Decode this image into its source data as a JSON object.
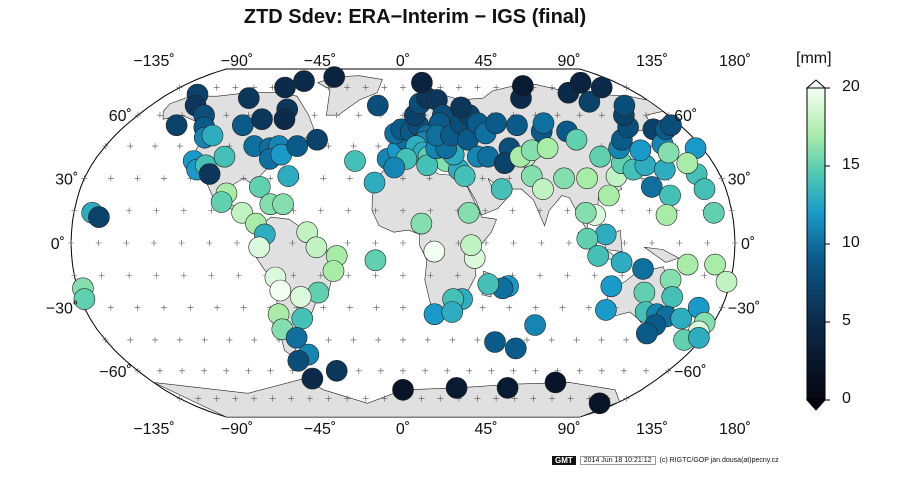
{
  "title": "ZTD Sdev:  ERA−Interim − IGS (final)",
  "colorbar": {
    "unit": "[mm]",
    "ticks": [
      20,
      15,
      10,
      5,
      0
    ],
    "min": 0,
    "max": 20
  },
  "axes": {
    "lon_ticks": [
      "−135˚",
      "−90˚",
      "−45˚",
      "0˚",
      "45˚",
      "90˚",
      "135˚",
      "180˚"
    ],
    "lon_values": [
      -135,
      -90,
      -45,
      0,
      45,
      90,
      135,
      180
    ],
    "lat_ticks": [
      "60˚",
      "30˚",
      "0˚",
      "−30˚",
      "−60˚"
    ],
    "lat_values": [
      60,
      30,
      0,
      -30,
      -60
    ]
  },
  "footer": {
    "logo": "GMT",
    "timestamp": "2014 Jun 18 10:21:12",
    "credit": "(c) RIGTC/GOP jan.dousa(at)pecny.cz"
  },
  "stations": [
    {
      "lon": -170,
      "lat": 14,
      "v": 13
    },
    {
      "lon": -166,
      "lat": 12,
      "v": 7
    },
    {
      "lon": -157,
      "lat": 71,
      "v": 7
    },
    {
      "lon": -148,
      "lat": 65,
      "v": 6
    },
    {
      "lon": -135,
      "lat": 60,
      "v": 8
    },
    {
      "lon": -147,
      "lat": 55,
      "v": 7
    },
    {
      "lon": -128,
      "lat": 54,
      "v": 9
    },
    {
      "lon": -123,
      "lat": 49,
      "v": 11
    },
    {
      "lon": -119,
      "lat": 50,
      "v": 13
    },
    {
      "lon": -122,
      "lat": 38,
      "v": 12
    },
    {
      "lon": -118,
      "lat": 34,
      "v": 12
    },
    {
      "lon": -114,
      "lat": 36,
      "v": 14
    },
    {
      "lon": -110,
      "lat": 32,
      "v": 6
    },
    {
      "lon": -105,
      "lat": 40,
      "v": 14
    },
    {
      "lon": -104,
      "lat": 55,
      "v": 9
    },
    {
      "lon": -115,
      "lat": 69,
      "v": 6
    },
    {
      "lon": -95,
      "lat": 75,
      "v": 5
    },
    {
      "lon": -85,
      "lat": 79,
      "v": 5
    },
    {
      "lon": -62,
      "lat": 82,
      "v": 4
    },
    {
      "lon": -81,
      "lat": 63,
      "v": 6
    },
    {
      "lon": -94,
      "lat": 58,
      "v": 6
    },
    {
      "lon": -79,
      "lat": 58,
      "v": 5
    },
    {
      "lon": -90,
      "lat": 45,
      "v": 10
    },
    {
      "lon": -80,
      "lat": 44,
      "v": 10
    },
    {
      "lon": -75,
      "lat": 45,
      "v": 11
    },
    {
      "lon": -78,
      "lat": 39,
      "v": 10
    },
    {
      "lon": -72,
      "lat": 41,
      "v": 12
    },
    {
      "lon": -64,
      "lat": 45,
      "v": 9
    },
    {
      "lon": -53,
      "lat": 48,
      "v": 7
    },
    {
      "lon": -98,
      "lat": 23,
      "v": 17
    },
    {
      "lon": -100,
      "lat": 19,
      "v": 15
    },
    {
      "lon": -88,
      "lat": 14,
      "v": 18
    },
    {
      "lon": -80,
      "lat": 26,
      "v": 15
    },
    {
      "lon": -73,
      "lat": 18,
      "v": 16
    },
    {
      "lon": -66,
      "lat": 18,
      "v": 16
    },
    {
      "lon": -65,
      "lat": 31,
      "v": 13
    },
    {
      "lon": -80,
      "lat": 9,
      "v": 17
    },
    {
      "lon": -75,
      "lat": 4,
      "v": 13
    },
    {
      "lon": -52,
      "lat": 5,
      "v": 18
    },
    {
      "lon": -78,
      "lat": -2,
      "v": 19
    },
    {
      "lon": -47,
      "lat": -2,
      "v": 18
    },
    {
      "lon": -36,
      "lat": -6,
      "v": 17
    },
    {
      "lon": -70,
      "lat": -16,
      "v": 19
    },
    {
      "lon": -68,
      "lat": -22,
      "v": 20
    },
    {
      "lon": -47,
      "lat": -23,
      "v": 15
    },
    {
      "lon": -38,
      "lat": -13,
      "v": 17
    },
    {
      "lon": -57,
      "lat": -25,
      "v": 19
    },
    {
      "lon": -71,
      "lat": -33,
      "v": 17
    },
    {
      "lon": -58,
      "lat": -35,
      "v": 14
    },
    {
      "lon": -71,
      "lat": -40,
      "v": 16
    },
    {
      "lon": -64,
      "lat": -44,
      "v": 10
    },
    {
      "lon": -60,
      "lat": -52,
      "v": 11
    },
    {
      "lon": -68,
      "lat": -55,
      "v": 8
    },
    {
      "lon": -64,
      "lat": -64,
      "v": 5
    },
    {
      "lon": -45,
      "lat": -60,
      "v": 6
    },
    {
      "lon": -18,
      "lat": 65,
      "v": 8
    },
    {
      "lon": -28,
      "lat": 38,
      "v": 14
    },
    {
      "lon": -16,
      "lat": 28,
      "v": 13
    },
    {
      "lon": -9,
      "lat": 39,
      "v": 11
    },
    {
      "lon": -3,
      "lat": 43,
      "v": 12
    },
    {
      "lon": 2,
      "lat": 48,
      "v": 10
    },
    {
      "lon": -5,
      "lat": 51,
      "v": 10
    },
    {
      "lon": -1,
      "lat": 53,
      "v": 9
    },
    {
      "lon": 5,
      "lat": 52,
      "v": 9
    },
    {
      "lon": 10,
      "lat": 55,
      "v": 8
    },
    {
      "lon": 8,
      "lat": 60,
      "v": 7
    },
    {
      "lon": 12,
      "lat": 66,
      "v": 8
    },
    {
      "lon": 18,
      "lat": 69,
      "v": 6
    },
    {
      "lon": 16,
      "lat": 78,
      "v": 4
    },
    {
      "lon": 25,
      "lat": 68,
      "v": 6
    },
    {
      "lon": 27,
      "lat": 60,
      "v": 8
    },
    {
      "lon": 24,
      "lat": 56,
      "v": 9
    },
    {
      "lon": 15,
      "lat": 50,
      "v": 10
    },
    {
      "lon": 13,
      "lat": 47,
      "v": 11
    },
    {
      "lon": 8,
      "lat": 45,
      "v": 13
    },
    {
      "lon": 12,
      "lat": 42,
      "v": 13
    },
    {
      "lon": 15,
      "lat": 40,
      "v": 15
    },
    {
      "lon": 21,
      "lat": 40,
      "v": 15
    },
    {
      "lon": 25,
      "lat": 38,
      "v": 16
    },
    {
      "lon": 2,
      "lat": 39,
      "v": 14
    },
    {
      "lon": -5,
      "lat": 35,
      "v": 11
    },
    {
      "lon": 14,
      "lat": 36,
      "v": 14
    },
    {
      "lon": 32,
      "lat": 34,
      "v": 13
    },
    {
      "lon": 35,
      "lat": 31,
      "v": 14
    },
    {
      "lon": 30,
      "lat": 41,
      "v": 13
    },
    {
      "lon": 20,
      "lat": 44,
      "v": 11
    },
    {
      "lon": 26,
      "lat": 44,
      "v": 10
    },
    {
      "lon": 21,
      "lat": 50,
      "v": 10
    },
    {
      "lon": 30,
      "lat": 50,
      "v": 9
    },
    {
      "lon": 38,
      "lat": 56,
      "v": 8
    },
    {
      "lon": 40,
      "lat": 48,
      "v": 9
    },
    {
      "lon": 44,
      "lat": 40,
      "v": 11
    },
    {
      "lon": 50,
      "lat": 40,
      "v": 10
    },
    {
      "lon": 45,
      "lat": 60,
      "v": 7
    },
    {
      "lon": 41,
      "lat": 64,
      "v": 6
    },
    {
      "lon": 49,
      "lat": 56,
      "v": 9
    },
    {
      "lon": 52,
      "lat": 51,
      "v": 10
    },
    {
      "lon": 61,
      "lat": 56,
      "v": 9
    },
    {
      "lon": 64,
      "lat": 44,
      "v": 8
    },
    {
      "lon": 59,
      "lat": 37,
      "v": 7
    },
    {
      "lon": 72,
      "lat": 40,
      "v": 18
    },
    {
      "lon": 69,
      "lat": 40,
      "v": 17
    },
    {
      "lon": 77,
      "lat": 43,
      "v": 16
    },
    {
      "lon": 74,
      "lat": 55,
      "v": 9
    },
    {
      "lon": 88,
      "lat": 69,
      "v": 5
    },
    {
      "lon": 98,
      "lat": 76,
      "v": 3
    },
    {
      "lon": 73,
      "lat": 31,
      "v": 16
    },
    {
      "lon": 78,
      "lat": 25,
      "v": 18
    },
    {
      "lon": 55,
      "lat": 25,
      "v": 14
    },
    {
      "lon": 88,
      "lat": 52,
      "v": 9
    },
    {
      "lon": 87,
      "lat": 44,
      "v": 17
    },
    {
      "lon": 92,
      "lat": 56,
      "v": 10
    },
    {
      "lon": 104,
      "lat": 52,
      "v": 9
    },
    {
      "lon": 107,
      "lat": 48,
      "v": 15
    },
    {
      "lon": 116,
      "lat": 40,
      "v": 15
    },
    {
      "lon": 121,
      "lat": 31,
      "v": 18
    },
    {
      "lon": 114,
      "lat": 22,
      "v": 17
    },
    {
      "lon": 104,
      "lat": 30,
      "v": 17
    },
    {
      "lon": 91,
      "lat": 30,
      "v": 16
    },
    {
      "lon": 105,
      "lat": 13,
      "v": 19
    },
    {
      "lon": 100,
      "lat": 14,
      "v": 16
    },
    {
      "lon": 127,
      "lat": 37,
      "v": 15
    },
    {
      "lon": 130,
      "lat": 44,
      "v": 11
    },
    {
      "lon": 132,
      "lat": 34,
      "v": 14
    },
    {
      "lon": 140,
      "lat": 36,
      "v": 13
    },
    {
      "lon": 142,
      "lat": 43,
      "v": 12
    },
    {
      "lon": 139,
      "lat": 26,
      "v": 10
    },
    {
      "lon": 135,
      "lat": 48,
      "v": 9
    },
    {
      "lon": 145,
      "lat": 54,
      "v": 8
    },
    {
      "lon": 150,
      "lat": 60,
      "v": 7
    },
    {
      "lon": 160,
      "lat": 53,
      "v": 7
    },
    {
      "lon": 158,
      "lat": 46,
      "v": 11
    },
    {
      "lon": 158,
      "lat": 65,
      "v": 8
    },
    {
      "lon": 136,
      "lat": 67,
      "v": 7
    },
    {
      "lon": 128,
      "lat": 72,
      "v": 5
    },
    {
      "lon": 160,
      "lat": 75,
      "v": 5
    },
    {
      "lon": 150,
      "lat": 78,
      "v": 4
    },
    {
      "lon": 168,
      "lat": 53,
      "v": 9
    },
    {
      "lon": 174,
      "lat": 55,
      "v": 8
    },
    {
      "lon": 176,
      "lat": 44,
      "v": 12
    },
    {
      "lon": 167,
      "lat": 32,
      "v": 14
    },
    {
      "lon": 150,
      "lat": 34,
      "v": 13
    },
    {
      "lon": 148,
      "lat": 22,
      "v": 14
    },
    {
      "lon": 168,
      "lat": 25,
      "v": 14
    },
    {
      "lon": 158,
      "lat": 42,
      "v": 16
    },
    {
      "lon": 165,
      "lat": 37,
      "v": 17
    },
    {
      "lon": 144,
      "lat": 13,
      "v": 17
    },
    {
      "lon": 170,
      "lat": 14,
      "v": 15
    },
    {
      "lon": 110,
      "lat": 4,
      "v": 13
    },
    {
      "lon": 100,
      "lat": 2,
      "v": 15
    },
    {
      "lon": 106,
      "lat": -6,
      "v": 14
    },
    {
      "lon": 119,
      "lat": -9,
      "v": 13
    },
    {
      "lon": 131,
      "lat": -12,
      "v": 10
    },
    {
      "lon": 155,
      "lat": -10,
      "v": 17
    },
    {
      "lon": 170,
      "lat": -10,
      "v": 17
    },
    {
      "lon": 178,
      "lat": -18,
      "v": 18
    },
    {
      "lon": 147,
      "lat": -17,
      "v": 16
    },
    {
      "lon": 115,
      "lat": -20,
      "v": 12
    },
    {
      "lon": 134,
      "lat": -23,
      "v": 15
    },
    {
      "lon": 150,
      "lat": -25,
      "v": 14
    },
    {
      "lon": 115,
      "lat": -31,
      "v": 12
    },
    {
      "lon": 138,
      "lat": -32,
      "v": 14
    },
    {
      "lon": 145,
      "lat": -33,
      "v": 11
    },
    {
      "lon": 151,
      "lat": -34,
      "v": 10
    },
    {
      "lon": 147,
      "lat": -38,
      "v": 9
    },
    {
      "lon": 145,
      "lat": -42,
      "v": 9
    },
    {
      "lon": 160,
      "lat": -35,
      "v": 13
    },
    {
      "lon": 167,
      "lat": -30,
      "v": 12
    },
    {
      "lon": 175,
      "lat": -37,
      "v": 16
    },
    {
      "lon": 175,
      "lat": -41,
      "v": 19
    },
    {
      "lon": 170,
      "lat": -45,
      "v": 15
    },
    {
      "lon": 178,
      "lat": -44,
      "v": 13
    },
    {
      "lon": -177,
      "lat": -21,
      "v": 16
    },
    {
      "lon": -178,
      "lat": -26,
      "v": 15
    },
    {
      "lon": 77,
      "lat": -38,
      "v": 11
    },
    {
      "lon": 70,
      "lat": -49,
      "v": 9
    },
    {
      "lon": 58,
      "lat": -20,
      "v": 12
    },
    {
      "lon": 55,
      "lat": -21,
      "v": 10
    },
    {
      "lon": 47,
      "lat": -19,
      "v": 14
    },
    {
      "lon": 33,
      "lat": -26,
      "v": 13
    },
    {
      "lon": 28,
      "lat": -26,
      "v": 14
    },
    {
      "lon": 18,
      "lat": -33,
      "v": 12
    },
    {
      "lon": 28,
      "lat": -32,
      "v": 13
    },
    {
      "lon": 39,
      "lat": -7,
      "v": 19
    },
    {
      "lon": 37,
      "lat": -1,
      "v": 18
    },
    {
      "lon": 36,
      "lat": 14,
      "v": 16
    },
    {
      "lon": 10,
      "lat": 9,
      "v": 16
    },
    {
      "lon": 17,
      "lat": -4,
      "v": 20
    },
    {
      "lon": -15,
      "lat": -8,
      "v": 15
    },
    {
      "lon": 56,
      "lat": -46,
      "v": 9
    },
    {
      "lon": 0,
      "lat": -70,
      "v": 2
    },
    {
      "lon": 40,
      "lat": -69,
      "v": 3
    },
    {
      "lon": 78,
      "lat": -69,
      "v": 3
    },
    {
      "lon": 110,
      "lat": -66,
      "v": 2
    },
    {
      "lon": 166,
      "lat": -78,
      "v": 2
    }
  ]
}
